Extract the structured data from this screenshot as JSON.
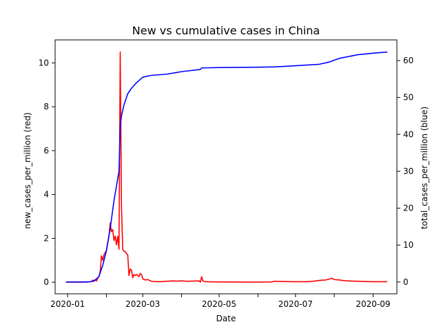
{
  "chart_data": {
    "type": "line",
    "title": "New vs cumulative cases in China",
    "xlabel": "Date",
    "ylabel_left": "new_cases_per_million (red)",
    "ylabel_right": "total_cases_per_million (blue)",
    "xlim": [
      "2019-12-22",
      "2020-09-20"
    ],
    "ylim_left": [
      -0.53,
      11.05
    ],
    "ylim_right": [
      -3.2,
      65.6
    ],
    "x_ticks": [
      "2020-01",
      "2020-03",
      "2020-05",
      "2020-07",
      "2020-09"
    ],
    "x_minor_ticks": [
      "2020-02",
      "2020-04",
      "2020-06",
      "2020-08"
    ],
    "y_left_ticks": [
      0,
      2,
      4,
      6,
      8,
      10
    ],
    "y_right_ticks": [
      0,
      10,
      20,
      30,
      40,
      50,
      60
    ],
    "grid": false,
    "legend": "none",
    "series": [
      {
        "axis": "left",
        "color": "#ff0000",
        "points": [
          [
            "2019-12-31",
            0.0
          ],
          [
            "2020-01-15",
            0.0
          ],
          [
            "2020-01-20",
            0.02
          ],
          [
            "2020-01-21",
            0.1
          ],
          [
            "2020-01-22",
            0.03
          ],
          [
            "2020-01-23",
            0.12
          ],
          [
            "2020-01-24",
            0.05
          ],
          [
            "2020-01-25",
            0.18
          ],
          [
            "2020-01-26",
            0.25
          ],
          [
            "2020-01-27",
            0.5
          ],
          [
            "2020-01-28",
            1.2
          ],
          [
            "2020-01-29",
            1.0
          ],
          [
            "2020-01-30",
            1.25
          ],
          [
            "2020-01-31",
            1.35
          ],
          [
            "2020-02-01",
            1.45
          ],
          [
            "2020-02-02",
            1.8
          ],
          [
            "2020-02-03",
            2.1
          ],
          [
            "2020-02-04",
            2.7
          ],
          [
            "2020-02-05",
            2.3
          ],
          [
            "2020-02-06",
            2.4
          ],
          [
            "2020-02-07",
            1.9
          ],
          [
            "2020-02-08",
            2.1
          ],
          [
            "2020-02-09",
            1.7
          ],
          [
            "2020-02-10",
            2.1
          ],
          [
            "2020-02-11",
            1.5
          ],
          [
            "2020-02-12",
            10.5
          ],
          [
            "2020-02-13",
            3.5
          ],
          [
            "2020-02-14",
            1.5
          ],
          [
            "2020-02-15",
            1.4
          ],
          [
            "2020-02-16",
            1.4
          ],
          [
            "2020-02-17",
            1.3
          ],
          [
            "2020-02-18",
            1.25
          ],
          [
            "2020-02-19",
            0.3
          ],
          [
            "2020-02-20",
            0.6
          ],
          [
            "2020-02-21",
            0.55
          ],
          [
            "2020-02-22",
            0.2
          ],
          [
            "2020-02-23",
            0.35
          ],
          [
            "2020-02-24",
            0.3
          ],
          [
            "2020-02-25",
            0.35
          ],
          [
            "2020-02-26",
            0.3
          ],
          [
            "2020-02-27",
            0.25
          ],
          [
            "2020-02-28",
            0.4
          ],
          [
            "2020-02-29",
            0.35
          ],
          [
            "2020-03-01",
            0.15
          ],
          [
            "2020-03-03",
            0.1
          ],
          [
            "2020-03-05",
            0.12
          ],
          [
            "2020-03-07",
            0.06
          ],
          [
            "2020-03-09",
            0.03
          ],
          [
            "2020-03-15",
            0.02
          ],
          [
            "2020-03-20",
            0.04
          ],
          [
            "2020-03-25",
            0.06
          ],
          [
            "2020-03-28",
            0.05
          ],
          [
            "2020-04-01",
            0.06
          ],
          [
            "2020-04-05",
            0.04
          ],
          [
            "2020-04-10",
            0.05
          ],
          [
            "2020-04-15",
            0.06
          ],
          [
            "2020-04-16",
            0.0
          ],
          [
            "2020-04-17",
            0.25
          ],
          [
            "2020-04-18",
            0.05
          ],
          [
            "2020-04-20",
            0.02
          ],
          [
            "2020-05-01",
            0.01
          ],
          [
            "2020-06-01",
            0.0
          ],
          [
            "2020-06-12",
            0.01
          ],
          [
            "2020-06-14",
            0.04
          ],
          [
            "2020-06-20",
            0.03
          ],
          [
            "2020-06-30",
            0.02
          ],
          [
            "2020-07-10",
            0.02
          ],
          [
            "2020-07-15",
            0.04
          ],
          [
            "2020-07-20",
            0.08
          ],
          [
            "2020-07-25",
            0.1
          ],
          [
            "2020-07-28",
            0.14
          ],
          [
            "2020-07-30",
            0.18
          ],
          [
            "2020-08-01",
            0.12
          ],
          [
            "2020-08-05",
            0.1
          ],
          [
            "2020-08-10",
            0.06
          ],
          [
            "2020-08-15",
            0.05
          ],
          [
            "2020-08-20",
            0.04
          ],
          [
            "2020-08-25",
            0.03
          ],
          [
            "2020-09-01",
            0.02
          ],
          [
            "2020-09-12",
            0.02
          ]
        ]
      },
      {
        "axis": "right",
        "color": "#0000ff",
        "points": [
          [
            "2019-12-31",
            0.0
          ],
          [
            "2020-01-15",
            0.0
          ],
          [
            "2020-01-20",
            0.1
          ],
          [
            "2020-01-23",
            0.5
          ],
          [
            "2020-01-26",
            1.5
          ],
          [
            "2020-01-29",
            4.5
          ],
          [
            "2020-02-01",
            8.5
          ],
          [
            "2020-02-04",
            14.5
          ],
          [
            "2020-02-07",
            22.0
          ],
          [
            "2020-02-10",
            28.0
          ],
          [
            "2020-02-11",
            30.0
          ],
          [
            "2020-02-12",
            42.0
          ],
          [
            "2020-02-13",
            45.0
          ],
          [
            "2020-02-15",
            48.0
          ],
          [
            "2020-02-18",
            51.0
          ],
          [
            "2020-02-21",
            52.5
          ],
          [
            "2020-02-25",
            54.0
          ],
          [
            "2020-03-01",
            55.5
          ],
          [
            "2020-03-08",
            56.0
          ],
          [
            "2020-03-20",
            56.3
          ],
          [
            "2020-04-01",
            57.0
          ],
          [
            "2020-04-16",
            57.6
          ],
          [
            "2020-04-17",
            58.0
          ],
          [
            "2020-05-01",
            58.1
          ],
          [
            "2020-06-01",
            58.2
          ],
          [
            "2020-06-15",
            58.3
          ],
          [
            "2020-07-01",
            58.6
          ],
          [
            "2020-07-20",
            59.0
          ],
          [
            "2020-07-28",
            59.6
          ],
          [
            "2020-08-05",
            60.6
          ],
          [
            "2020-08-20",
            61.6
          ],
          [
            "2020-09-01",
            62.0
          ],
          [
            "2020-09-12",
            62.3
          ]
        ]
      }
    ]
  }
}
